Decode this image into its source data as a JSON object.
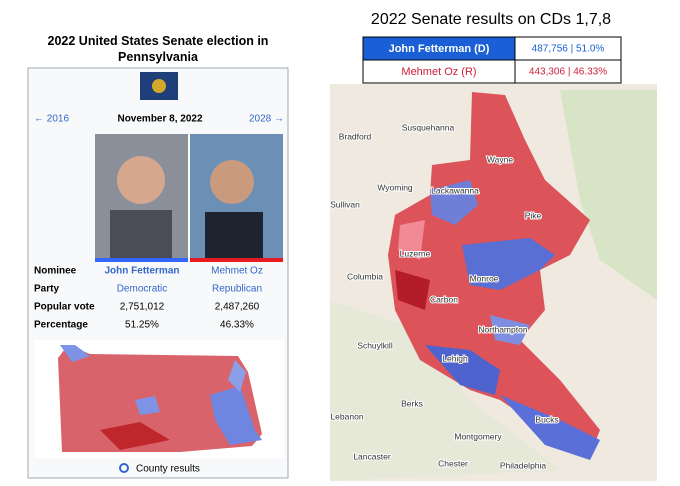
{
  "infobox": {
    "title": "2022 United States Senate election in Pennsylvania",
    "prev": "← 2016",
    "date": "November 8, 2022",
    "next": "2028 →",
    "rows": [
      [
        "Nominee",
        "John Fetterman",
        "Mehmet Oz"
      ],
      [
        "Party",
        "Democratic",
        "Republican"
      ],
      [
        "Popular vote",
        "2,751,012",
        "2,487,260"
      ],
      [
        "Percentage",
        "51.25%",
        "46.33%"
      ]
    ],
    "map_caption": "County results"
  },
  "results": {
    "title": "2022 Senate results on CDs 1,7,8",
    "rows": [
      [
        "John Fetterman (D)",
        "487,756 | 51.0%"
      ],
      [
        "Mehmet Oz (R)",
        "443,306 | 46.33%"
      ]
    ]
  },
  "map": {
    "labels": [
      "Bradford",
      "Susquehanna",
      "Wayne",
      "Wyoming",
      "Lackawanna",
      "Sullivan",
      "Pike",
      "Luzerne",
      "Monroe",
      "Columbia",
      "Carbon",
      "Northampton",
      "Schuylkill",
      "Lehigh",
      "Berks",
      "Lebanon",
      "Bucks",
      "Montgomery",
      "Lancaster",
      "Chester",
      "Philadelphia"
    ]
  }
}
